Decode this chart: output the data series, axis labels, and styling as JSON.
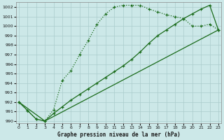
{
  "xlabel": "Graphe pression niveau de la mer (hPa)",
  "background_color": "#cce8e8",
  "grid_color": "#aacccc",
  "line_color": "#1a6b1a",
  "ylim": [
    989.8,
    1002.5
  ],
  "xlim": [
    -0.3,
    23.3
  ],
  "yticks": [
    990,
    991,
    992,
    993,
    994,
    995,
    996,
    997,
    998,
    999,
    1000,
    1001,
    1002
  ],
  "xticks": [
    0,
    1,
    2,
    3,
    4,
    5,
    6,
    7,
    8,
    9,
    10,
    11,
    12,
    13,
    14,
    15,
    16,
    17,
    18,
    19,
    20,
    21,
    22,
    23
  ],
  "line1_x": [
    0,
    1,
    2,
    3,
    4,
    5,
    6,
    7,
    8,
    9,
    10,
    11,
    12,
    13,
    14,
    15,
    16,
    17,
    18,
    19,
    20,
    21,
    22,
    23
  ],
  "line1_y": [
    992.0,
    991.1,
    990.2,
    990.0,
    991.2,
    994.3,
    995.3,
    997.0,
    998.5,
    1000.2,
    1001.3,
    1002.0,
    1002.2,
    1002.2,
    1002.2,
    1001.8,
    1001.5,
    1001.2,
    1001.0,
    1000.8,
    1000.0,
    1000.0,
    1000.2,
    999.6
  ],
  "line2_x": [
    0,
    1,
    2,
    3,
    4,
    5,
    6,
    7,
    8,
    9,
    10,
    11,
    12,
    13,
    14,
    15,
    16,
    17,
    18,
    19,
    20,
    21,
    22,
    23
  ],
  "line2_y": [
    992.0,
    991.1,
    990.2,
    990.0,
    990.8,
    991.5,
    992.2,
    992.8,
    993.4,
    994.0,
    994.6,
    995.2,
    995.8,
    996.5,
    997.3,
    998.2,
    999.0,
    999.6,
    1000.2,
    1000.8,
    1001.3,
    1001.8,
    1002.2,
    999.6
  ],
  "line3_x": [
    0,
    3,
    23
  ],
  "line3_y": [
    992.0,
    990.0,
    999.6
  ]
}
